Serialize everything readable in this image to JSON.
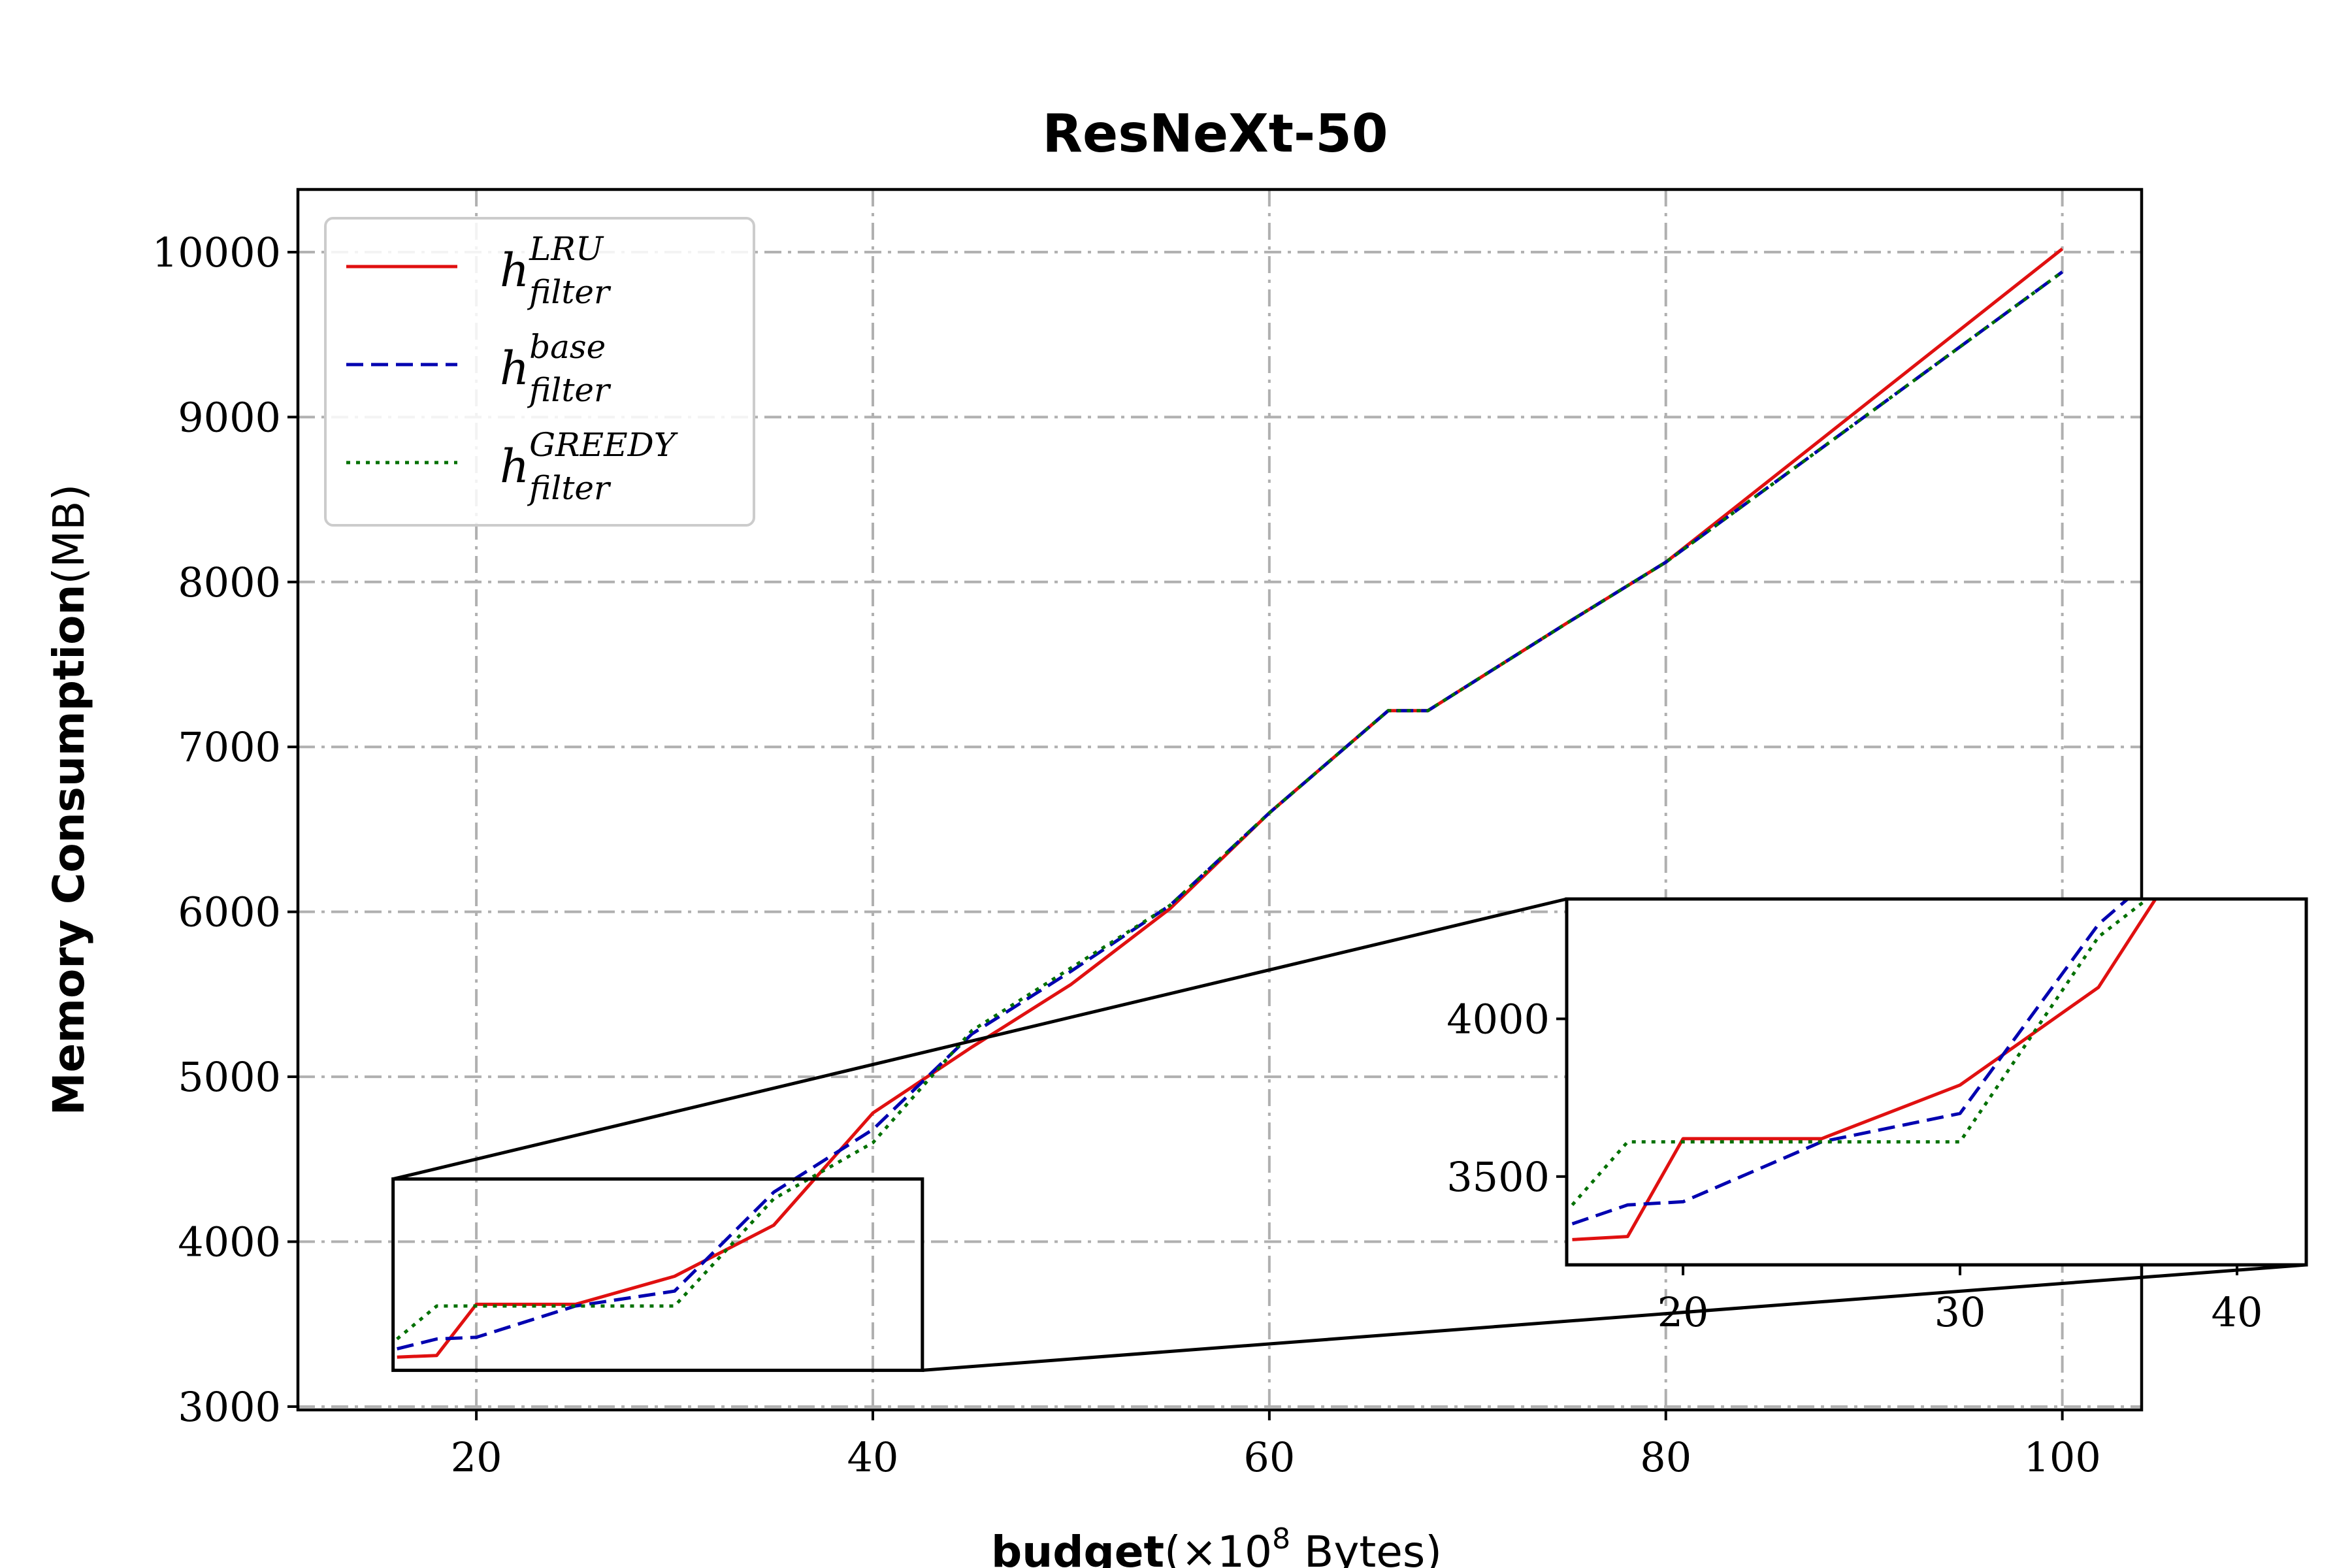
{
  "chart_data": {
    "type": "line",
    "title": "ResNeXt-50",
    "xlabel_bold": "budget",
    "xlabel_rest": "(×10",
    "xlabel_exp": "8",
    "xlabel_unit": " Bytes)",
    "ylabel_bold": "Memory Consumption",
    "ylabel_rest": "(MB)",
    "xlim": [
      11,
      104
    ],
    "ylim": [
      2980,
      10380
    ],
    "xticks": [
      20,
      40,
      60,
      80,
      100
    ],
    "yticks": [
      3000,
      4000,
      5000,
      6000,
      7000,
      8000,
      9000,
      10000
    ],
    "grid": true,
    "legend_position": "top-left",
    "series": [
      {
        "name": "h_filter^LRU",
        "base": "h",
        "sub": "filter",
        "sup": "LRU",
        "color": "#e01010",
        "dash": "solid",
        "x": [
          16,
          18,
          20,
          25,
          30,
          35,
          40,
          45,
          50,
          55,
          60,
          66,
          68,
          75,
          80,
          100
        ],
        "y": [
          3300,
          3310,
          3620,
          3620,
          3790,
          4100,
          4780,
          5180,
          5560,
          6020,
          6600,
          7220,
          7220,
          7750,
          8120,
          10020
        ]
      },
      {
        "name": "h_filter^base",
        "base": "h",
        "sub": "filter",
        "sup": "base",
        "color": "#0000b0",
        "dash": "dashed",
        "x": [
          16,
          18,
          20,
          25,
          30,
          35,
          40,
          45,
          50,
          55,
          60,
          66,
          68,
          75,
          80,
          100
        ],
        "y": [
          3350,
          3410,
          3420,
          3610,
          3700,
          4300,
          4680,
          5260,
          5640,
          6040,
          6600,
          7220,
          7220,
          7750,
          8120,
          9880
        ]
      },
      {
        "name": "h_filter^GREEDY",
        "base": "h",
        "sub": "filter",
        "sup": "GREEDY",
        "color": "#007000",
        "dash": "dotted",
        "x": [
          16,
          18,
          20,
          25,
          30,
          35,
          40,
          45,
          50,
          55,
          60,
          66,
          68,
          75,
          80,
          100
        ],
        "y": [
          3410,
          3610,
          3610,
          3610,
          3610,
          4260,
          4600,
          5280,
          5660,
          6040,
          6600,
          7220,
          7220,
          7750,
          8120,
          9880
        ]
      }
    ],
    "inset": {
      "xlim": [
        15.8,
        42.5
      ],
      "ylim": [
        3220,
        4380
      ],
      "xticks": [
        20,
        30,
        40
      ],
      "yticks": [
        3500,
        4000
      ],
      "zoom_region": "lower-left"
    }
  }
}
